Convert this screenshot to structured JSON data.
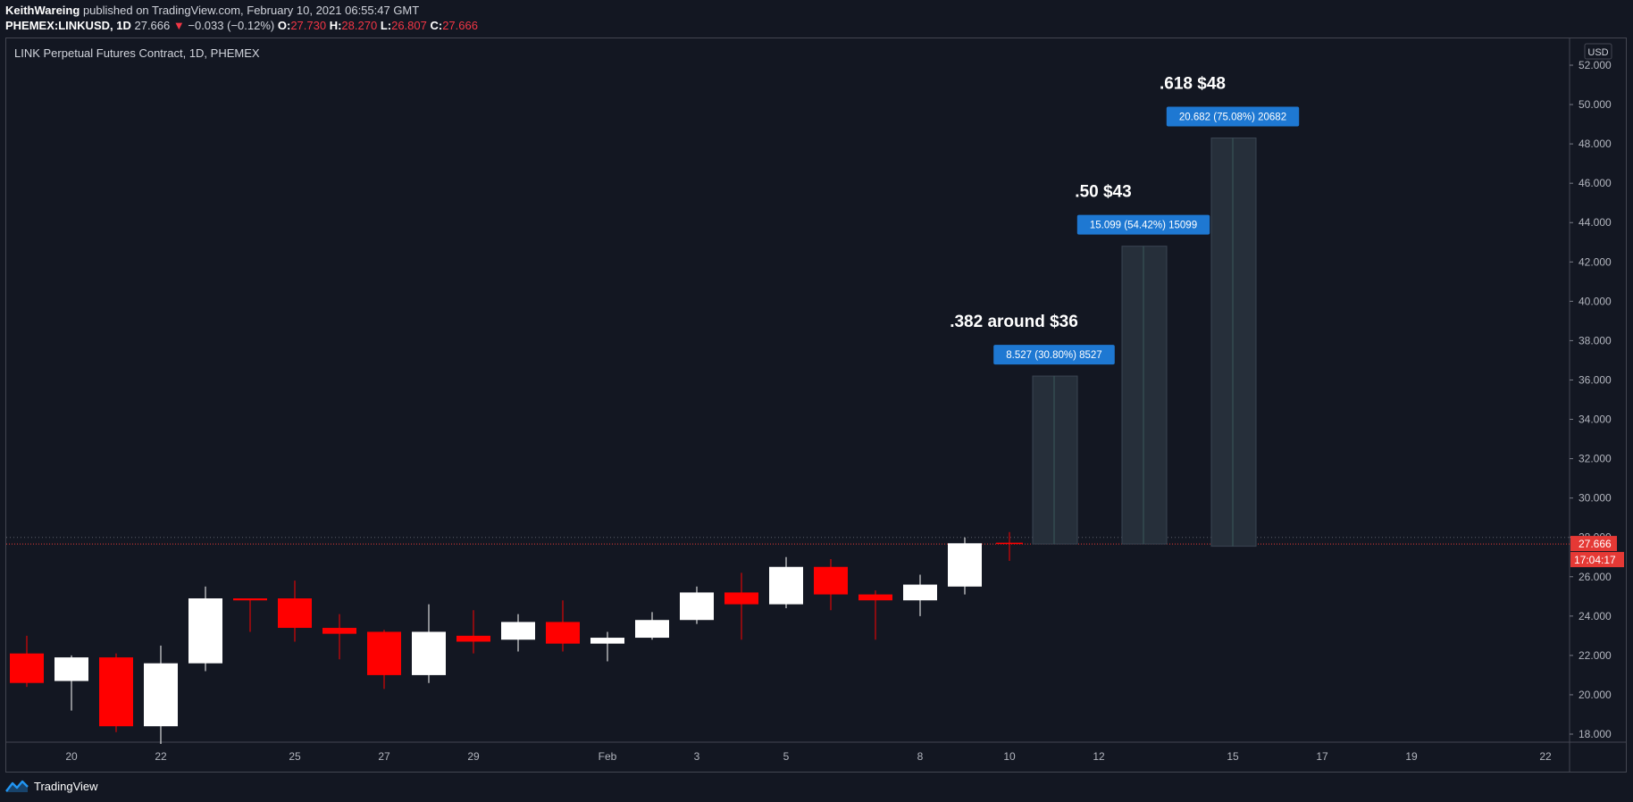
{
  "header": {
    "author": "KeithWareing",
    "published_text": "published on TradingView.com, February 10, 2021 06:55:47 GMT",
    "symbol": "PHEMEX:LINKUSD, 1D",
    "last": "27.666",
    "change": "−0.033 (−0.12%)",
    "o_label": "O:",
    "o": "27.730",
    "h_label": "H:",
    "h": "28.270",
    "l_label": "L:",
    "l": "26.807",
    "c_label": "C:",
    "c": "27.666"
  },
  "chart_title": "LINK Perpetual Futures Contract, 1D, PHEMEX",
  "footer": {
    "brand": "TradingView",
    "logo_icon": "tradingview-logo-icon"
  },
  "colors": {
    "background": "#131722",
    "up": "#ffffff",
    "down": "#ff0000",
    "target_box": "#262f3a",
    "badge": "#1e78d2",
    "price_line": "#e53935"
  },
  "chart_data": {
    "type": "candlestick",
    "currency": "USD",
    "ylim": [
      17.4,
      52.5
    ],
    "y_ticks": [
      "18.000",
      "20.000",
      "22.000",
      "24.000",
      "26.000",
      "28.000",
      "30.000",
      "32.000",
      "34.000",
      "36.000",
      "38.000",
      "40.000",
      "42.000",
      "44.000",
      "46.000",
      "48.000",
      "50.000",
      "52.000"
    ],
    "x_ticks": [
      {
        "label": "20",
        "index": 1
      },
      {
        "label": "22",
        "index": 3
      },
      {
        "label": "25",
        "index": 6
      },
      {
        "label": "27",
        "index": 8
      },
      {
        "label": "29",
        "index": 10
      },
      {
        "label": "Feb",
        "index": 13
      },
      {
        "label": "3",
        "index": 15
      },
      {
        "label": "5",
        "index": 17
      },
      {
        "label": "8",
        "index": 20
      },
      {
        "label": "10",
        "index": 22
      },
      {
        "label": "12",
        "index": 24
      },
      {
        "label": "15",
        "index": 27
      },
      {
        "label": "17",
        "index": 29
      },
      {
        "label": "19",
        "index": 31
      },
      {
        "label": "22",
        "index": 34
      }
    ],
    "candles": [
      {
        "o": 22.1,
        "h": 23.0,
        "l": 20.4,
        "c": 20.6
      },
      {
        "o": 20.7,
        "h": 22.0,
        "l": 19.2,
        "c": 21.9
      },
      {
        "o": 21.9,
        "h": 22.1,
        "l": 18.1,
        "c": 18.4
      },
      {
        "o": 18.4,
        "h": 22.5,
        "l": 17.5,
        "c": 21.6
      },
      {
        "o": 21.6,
        "h": 25.5,
        "l": 21.2,
        "c": 24.9
      },
      {
        "o": 24.9,
        "h": 24.9,
        "l": 23.2,
        "c": 24.8
      },
      {
        "o": 24.9,
        "h": 25.8,
        "l": 22.7,
        "c": 23.4
      },
      {
        "o": 23.4,
        "h": 24.1,
        "l": 21.8,
        "c": 23.1
      },
      {
        "o": 23.2,
        "h": 23.3,
        "l": 20.3,
        "c": 21.0
      },
      {
        "o": 21.0,
        "h": 24.6,
        "l": 20.6,
        "c": 23.2
      },
      {
        "o": 23.0,
        "h": 24.3,
        "l": 22.1,
        "c": 22.7
      },
      {
        "o": 22.8,
        "h": 24.1,
        "l": 22.2,
        "c": 23.7
      },
      {
        "o": 23.7,
        "h": 24.8,
        "l": 22.2,
        "c": 22.6
      },
      {
        "o": 22.6,
        "h": 23.2,
        "l": 21.7,
        "c": 22.9
      },
      {
        "o": 22.9,
        "h": 24.2,
        "l": 22.8,
        "c": 23.8
      },
      {
        "o": 23.8,
        "h": 25.5,
        "l": 23.6,
        "c": 25.2
      },
      {
        "o": 25.2,
        "h": 26.2,
        "l": 22.8,
        "c": 24.6
      },
      {
        "o": 24.6,
        "h": 27.0,
        "l": 24.4,
        "c": 26.5
      },
      {
        "o": 26.5,
        "h": 26.9,
        "l": 24.3,
        "c": 25.1
      },
      {
        "o": 25.1,
        "h": 25.3,
        "l": 22.8,
        "c": 24.8
      },
      {
        "o": 24.8,
        "h": 26.1,
        "l": 24.0,
        "c": 25.6
      },
      {
        "o": 25.5,
        "h": 28.0,
        "l": 25.1,
        "c": 27.7
      },
      {
        "o": 27.73,
        "h": 28.27,
        "l": 26.807,
        "c": 27.666
      }
    ],
    "targets": [
      {
        "index": 23,
        "low": 27.666,
        "high": 36.2,
        "badge": "8.527 (30.80%) 8527",
        "label": ".382 around $36"
      },
      {
        "index": 25,
        "low": 27.666,
        "high": 42.8,
        "badge": "15.099 (54.42%) 15099",
        "label": ".50 $43"
      },
      {
        "index": 27,
        "low": 27.55,
        "high": 48.3,
        "badge": "20.682 (75.08%) 20682",
        "label": ".618 $48"
      }
    ],
    "last_price": 27.666,
    "last_price_label": "27.666",
    "countdown_label": "17:04:17",
    "dotted_high_line": 28.0
  }
}
